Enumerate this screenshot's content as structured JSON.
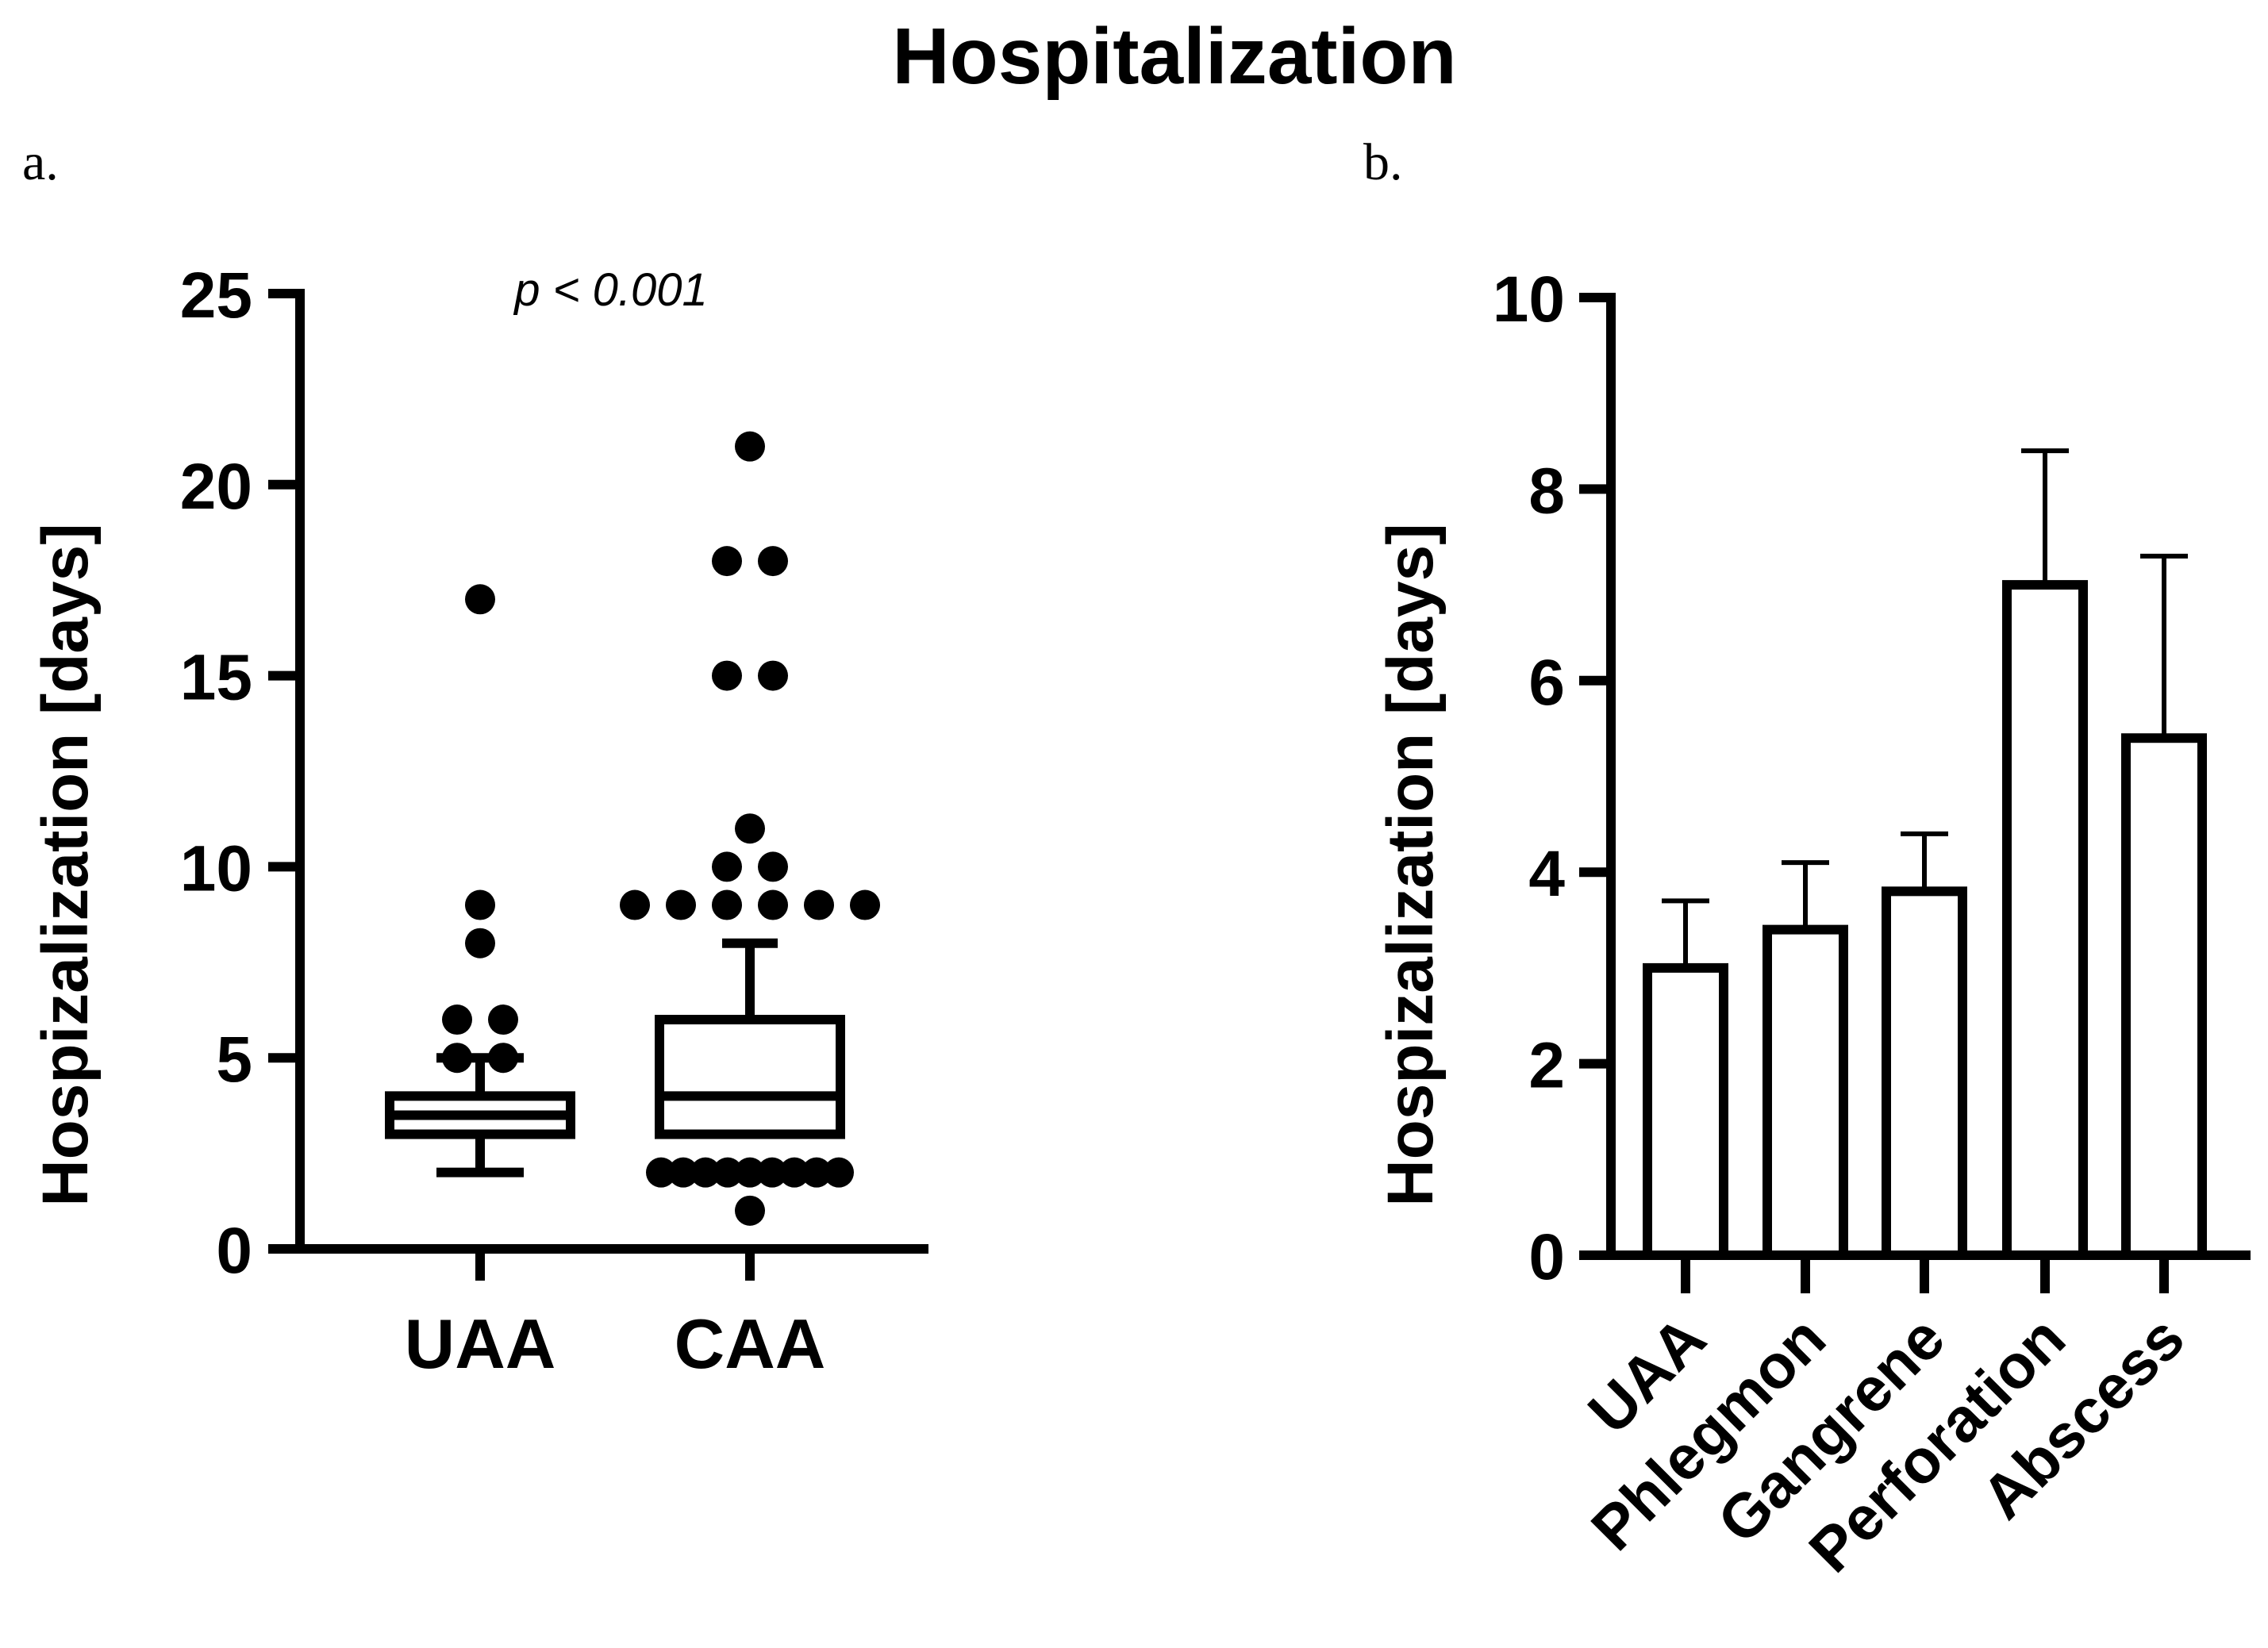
{
  "figure": {
    "title": "Hospitalization"
  },
  "chart_data": [
    {
      "panel_label": "a.",
      "type": "box",
      "title": "",
      "annotation": "p < 0.001",
      "xlabel": "",
      "ylabel": "Hospizalization [days]",
      "ylim": [
        0,
        25
      ],
      "yticks": [
        0,
        5,
        10,
        15,
        20,
        25
      ],
      "grid": false,
      "categories": [
        "UAA",
        "CAA"
      ],
      "boxes": [
        {
          "name": "UAA",
          "whisker_low": 2,
          "q1": 3,
          "median": 3.5,
          "q3": 4,
          "whisker_high": 5,
          "outliers": [
            5,
            5,
            6,
            6,
            8,
            9,
            17
          ]
        },
        {
          "name": "CAA",
          "whisker_low": 3,
          "q1": 3,
          "median": 4,
          "q3": 6,
          "whisker_high": 8,
          "outliers": [
            1,
            2,
            2,
            2,
            2,
            2,
            2,
            2,
            2,
            2,
            9,
            9,
            9,
            9,
            9,
            9,
            10,
            10,
            11,
            15,
            15,
            18,
            18,
            21
          ]
        }
      ]
    },
    {
      "panel_label": "b.",
      "type": "bar",
      "title": "",
      "xlabel": "",
      "ylabel": "Hospizalization [days]",
      "ylim": [
        0,
        10
      ],
      "yticks": [
        0,
        2,
        4,
        6,
        8,
        10
      ],
      "grid": false,
      "categories": [
        "UAA",
        "Phlegmon",
        "Gangrene",
        "Perforation",
        "Abscess"
      ],
      "values": [
        3.0,
        3.4,
        3.8,
        7.0,
        5.4
      ],
      "error_upper": [
        3.7,
        4.1,
        4.4,
        8.4,
        7.3
      ]
    }
  ]
}
